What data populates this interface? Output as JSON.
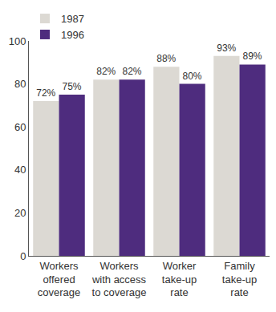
{
  "chart_data": {
    "type": "bar",
    "categories": [
      "Workers offered coverage",
      "Workers with access to coverage",
      "Worker take-up rate",
      "Family take-up rate"
    ],
    "series": [
      {
        "name": "1987",
        "color": "#dcd9d3",
        "values": [
          72,
          82,
          88,
          93
        ],
        "value_labels": [
          "72%",
          "82%",
          "88%",
          "93%"
        ]
      },
      {
        "name": "1996",
        "color": "#4e2c7e",
        "values": [
          75,
          82,
          80,
          89
        ],
        "value_labels": [
          "75%",
          "82%",
          "80%",
          "89%"
        ]
      }
    ],
    "ylim": [
      0,
      100
    ],
    "yticks": [
      0,
      20,
      40,
      60,
      80,
      100
    ],
    "grid": false,
    "legend": "top-left",
    "data_labels": true
  }
}
